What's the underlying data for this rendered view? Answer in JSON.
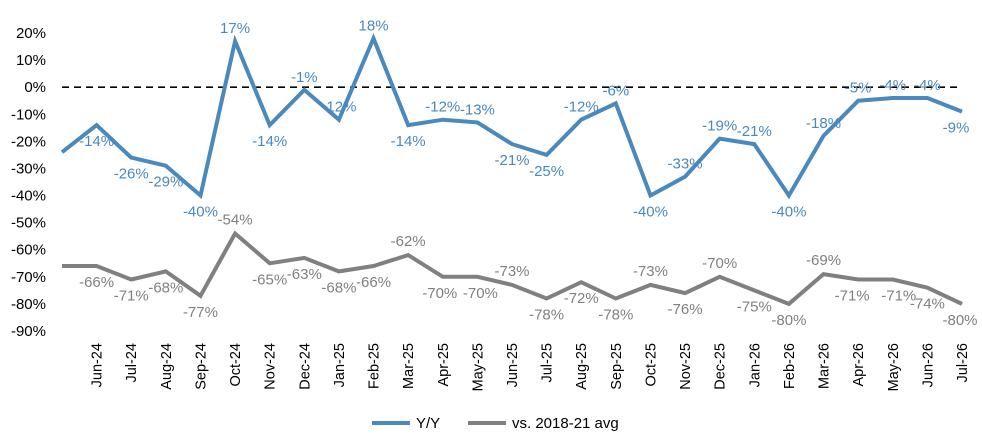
{
  "chart_data": {
    "type": "line",
    "categories": [
      "",
      "Jun-24",
      "Jul-24",
      "Aug-24",
      "Sep-24",
      "Oct-24",
      "Nov-24",
      "Dec-24",
      "Jan-25",
      "Feb-25",
      "Mar-25",
      "Apr-25",
      "May-25",
      "Jun-25",
      "Jul-25",
      "Aug-25",
      "Sep-25",
      "Oct-25",
      "Nov-25",
      "Dec-25",
      "Jan-26",
      "Feb-26",
      "Mar-26",
      "Apr-26",
      "May-26",
      "Jun-26",
      "Jul-26"
    ],
    "ylim": [
      -90,
      20
    ],
    "yticks": [
      20,
      10,
      0,
      -10,
      -20,
      -30,
      -40,
      -50,
      -60,
      -70,
      -80,
      -90
    ],
    "ytick_labels": [
      "20%",
      "10%",
      "0%",
      "-10%",
      "-20%",
      "-30%",
      "-40%",
      "-50%",
      "-60%",
      "-70%",
      "-80%",
      "-90%"
    ],
    "zero_line": "dashed",
    "grid": false,
    "legend_position": "bottom",
    "series": [
      {
        "name": "Y/Y",
        "color": "#4a89bd",
        "values": [
          -24,
          -14,
          -26,
          -29,
          -40,
          17,
          -14,
          -1,
          -12,
          18,
          -14,
          -12,
          -13,
          -21,
          -25,
          -12,
          -6,
          -40,
          -33,
          -19,
          -21,
          -40,
          -18,
          -5,
          -4,
          -4,
          -9
        ],
        "labels": [
          "",
          "-14%",
          "-26%",
          "-29%",
          "-40%",
          "17%",
          "-14%",
          "-1%",
          "-12%",
          "18%",
          "-14%",
          "-12%",
          "-13%",
          "-21%",
          "-25%",
          "-12%",
          "-6%",
          "-40%",
          "-33%",
          "-19%",
          "-21%",
          "-40%",
          "-18%",
          "-5%",
          "-4%",
          "-4%",
          "-9%"
        ]
      },
      {
        "name": "vs. 2018-21 avg",
        "color": "#808080",
        "values": [
          -66,
          -66,
          -71,
          -68,
          -77,
          -54,
          -65,
          -63,
          -68,
          -66,
          -62,
          -70,
          -70,
          -73,
          -78,
          -72,
          -78,
          -73,
          -76,
          -70,
          -75,
          -80,
          -69,
          -71,
          -71,
          -74,
          -80
        ],
        "labels": [
          "",
          "-66%",
          "-71%",
          "-68%",
          "-77%",
          "-54%",
          "-65%",
          "-63%",
          "-68%",
          "-66%",
          "-62%",
          "-70%",
          "-70%",
          "-73%",
          "-78%",
          "-72%",
          "-78%",
          "-73%",
          "-76%",
          "-70%",
          "-75%",
          "-80%",
          "-69%",
          "-71%",
          "-71%",
          "-74%",
          "-80%"
        ]
      }
    ]
  }
}
